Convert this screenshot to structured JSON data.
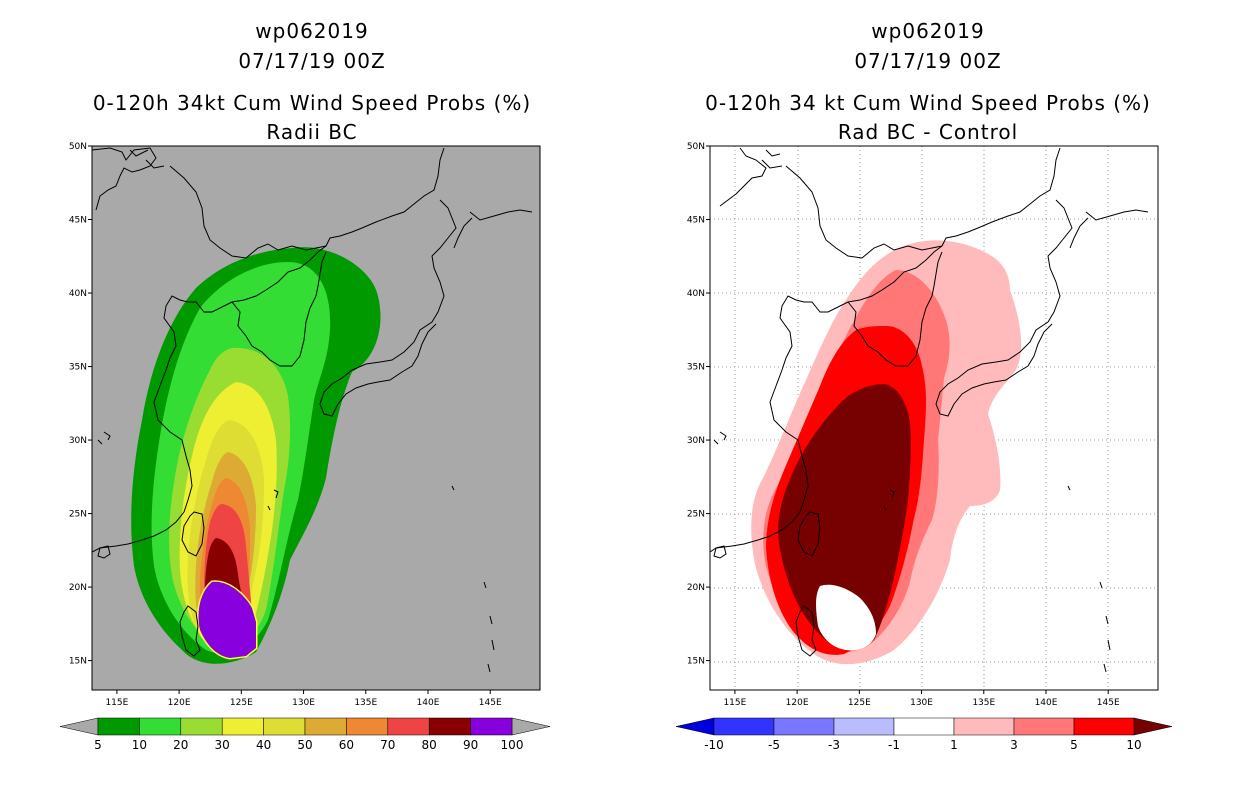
{
  "left_panel": {
    "storm_id": "wp062019",
    "datetime": "07/17/19 00Z",
    "title": "0-120h 34kt Cum Wind Speed Probs (%)",
    "subtitle": "Radii BC",
    "background_color": "#a9a9a9",
    "lat_labels": [
      "50N",
      "45N",
      "40N",
      "35N",
      "30N",
      "25N",
      "20N",
      "15N"
    ],
    "lon_labels": [
      "115E",
      "120E",
      "125E",
      "130E",
      "135E",
      "140E",
      "145E"
    ],
    "colorbar": {
      "labels": [
        "5",
        "10",
        "20",
        "30",
        "40",
        "50",
        "60",
        "70",
        "80",
        "90",
        "100"
      ],
      "colors": [
        "#009900",
        "#33dd33",
        "#99dd33",
        "#eeee33",
        "#dddd33",
        "#ddaa33",
        "#ee8833",
        "#ee4444",
        "#880000",
        "#8800dd"
      ]
    }
  },
  "right_panel": {
    "storm_id": "wp062019",
    "datetime": "07/17/19 00Z",
    "title": "0-120h 34 kt Cum Wind Speed Probs (%)",
    "subtitle": "Rad BC - Control",
    "background_color": "#ffffff",
    "lat_labels": [
      "50N",
      "45N",
      "40N",
      "35N",
      "30N",
      "25N",
      "20N",
      "15N"
    ],
    "lon_labels": [
      "115E",
      "120E",
      "125E",
      "130E",
      "135E",
      "140E",
      "145E"
    ],
    "colorbar": {
      "labels": [
        "-10",
        "-5",
        "-3",
        "-1",
        "1",
        "3",
        "5",
        "10"
      ],
      "colors": [
        "#0000dd",
        "#3333ff",
        "#7777ff",
        "#bbbbff",
        "#ffffff",
        "#ffbbbb",
        "#ff7777",
        "#ff0000",
        "#770000"
      ]
    }
  }
}
